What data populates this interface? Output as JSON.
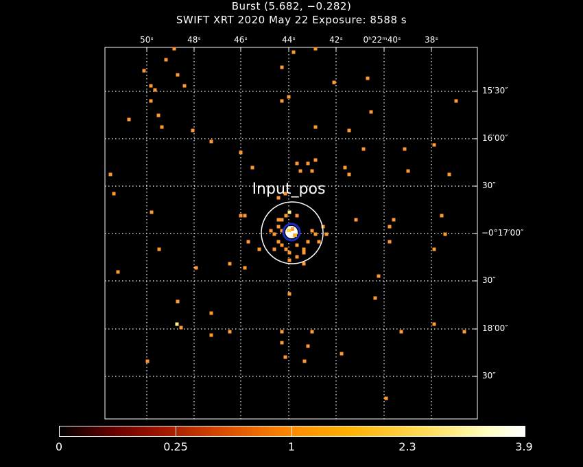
{
  "header": {
    "title": "Burst (5.682, −0.282)",
    "subtitle": "SWIFT XRT   2020 May 22    Exposure: 8588 s"
  },
  "ra_ticks": [
    "50ˢ",
    "48ˢ",
    "46ˢ",
    "44ˢ",
    "42ˢ",
    "0ʰ22ᵐ40ˢ",
    "38ˢ"
  ],
  "dec_ticks": [
    "15′30″",
    "16′00″",
    "30″",
    "−0°17′00″",
    "30″",
    "18′00″",
    "30″"
  ],
  "source_label": "Input_pos",
  "colorbar": {
    "labels": [
      "0",
      "0.25",
      "1",
      "2.3",
      "3.9"
    ]
  },
  "colors": {
    "event": "#ff9933",
    "bright_event": "#ffee88",
    "grid": "#ffffff",
    "circle": "#ffffff",
    "core": "#1a2fbf"
  },
  "events": [
    [
      254,
      71
    ],
    [
      428,
      76
    ],
    [
      460,
      71
    ],
    [
      242,
      87
    ],
    [
      210,
      103
    ],
    [
      411,
      98
    ],
    [
      259,
      109
    ],
    [
      220,
      125
    ],
    [
      226,
      131
    ],
    [
      269,
      125
    ],
    [
      487,
      120
    ],
    [
      536,
      114
    ],
    [
      220,
      147
    ],
    [
      421,
      141
    ],
    [
      411,
      147
    ],
    [
      231,
      168
    ],
    [
      188,
      174
    ],
    [
      541,
      163
    ],
    [
      665,
      147
    ],
    [
      236,
      185
    ],
    [
      281,
      190
    ],
    [
      460,
      185
    ],
    [
      509,
      190
    ],
    [
      308,
      206
    ],
    [
      633,
      211
    ],
    [
      590,
      217
    ],
    [
      530,
      217
    ],
    [
      351,
      222
    ],
    [
      433,
      238
    ],
    [
      449,
      238
    ],
    [
      460,
      233
    ],
    [
      368,
      244
    ],
    [
      438,
      249
    ],
    [
      503,
      244
    ],
    [
      455,
      249
    ],
    [
      595,
      249
    ],
    [
      161,
      254
    ],
    [
      655,
      254
    ],
    [
      509,
      254
    ],
    [
      166,
      282
    ],
    [
      406,
      288
    ],
    [
      416,
      282
    ],
    [
      221,
      309
    ],
    [
      351,
      314
    ],
    [
      357,
      314
    ],
    [
      519,
      320
    ],
    [
      574,
      320
    ],
    [
      644,
      314
    ],
    [
      568,
      330
    ],
    [
      406,
      320
    ],
    [
      411,
      320
    ],
    [
      417,
      314
    ],
    [
      433,
      314
    ],
    [
      471,
      330
    ],
    [
      406,
      330
    ],
    [
      395,
      336
    ],
    [
      400,
      341
    ],
    [
      411,
      336
    ],
    [
      455,
      336
    ],
    [
      460,
      341
    ],
    [
      476,
      341
    ],
    [
      449,
      352
    ],
    [
      465,
      352
    ],
    [
      362,
      352
    ],
    [
      406,
      352
    ],
    [
      411,
      357
    ],
    [
      417,
      363
    ],
    [
      433,
      357
    ],
    [
      443,
      363
    ],
    [
      378,
      363
    ],
    [
      400,
      363
    ],
    [
      422,
      368
    ],
    [
      433,
      374
    ],
    [
      443,
      368
    ],
    [
      568,
      352
    ],
    [
      649,
      341
    ],
    [
      232,
      363
    ],
    [
      633,
      363
    ],
    [
      422,
      379
    ],
    [
      443,
      384
    ],
    [
      335,
      384
    ],
    [
      357,
      390
    ],
    [
      286,
      390
    ],
    [
      172,
      396
    ],
    [
      552,
      402
    ],
    [
      422,
      428
    ],
    [
      259,
      439
    ],
    [
      547,
      434
    ],
    [
      308,
      456
    ],
    [
      633,
      472
    ],
    [
      264,
      477
    ],
    [
      335,
      483
    ],
    [
      411,
      483
    ],
    [
      455,
      483
    ],
    [
      585,
      483
    ],
    [
      677,
      483
    ],
    [
      308,
      488
    ],
    [
      411,
      499
    ],
    [
      449,
      504
    ],
    [
      498,
      515
    ],
    [
      416,
      520
    ],
    [
      444,
      526
    ],
    [
      215,
      526
    ],
    [
      563,
      580
    ]
  ],
  "bright_events": [
    [
      258,
      472
    ],
    [
      422,
      309
    ]
  ]
}
